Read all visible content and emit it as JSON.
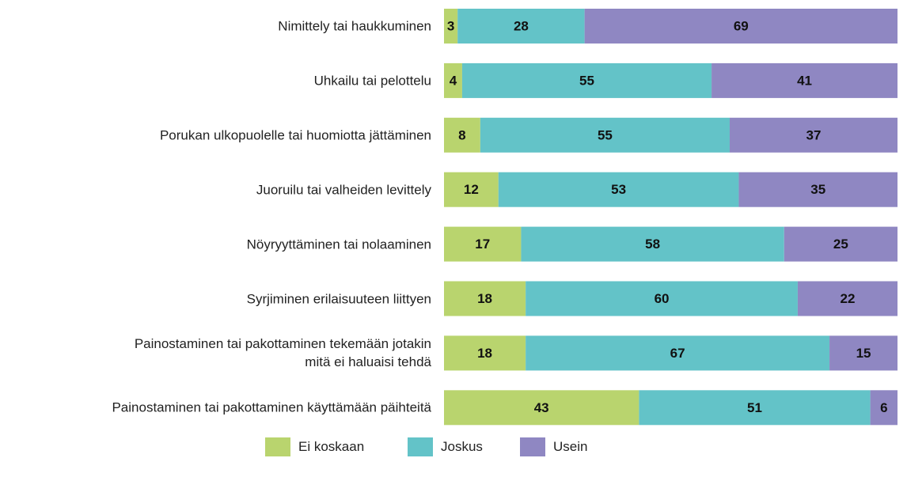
{
  "chart_data": {
    "type": "stacked-bar-horizontal",
    "categories": [
      "Nimittely tai haukkuminen",
      "Uhkailu tai pelottelu",
      "Porukan ulkopuolelle tai huomiotta jättäminen",
      "Juoruilu tai valheiden levittely",
      "Nöyryyttäminen tai nolaaminen",
      "Syrjiminen erilaisuuteen liittyen",
      "Painostaminen tai pakottaminen tekemään jotakin\nmitä ei haluaisi tehdä",
      "Painostaminen tai pakottaminen käyttämään päihteitä"
    ],
    "series": [
      {
        "name": "Ei koskaan",
        "color": "#b9d46e",
        "values": [
          3,
          4,
          8,
          12,
          17,
          18,
          18,
          43
        ]
      },
      {
        "name": "Joskus",
        "color": "#63c3c8",
        "values": [
          28,
          55,
          55,
          53,
          58,
          60,
          67,
          51
        ]
      },
      {
        "name": "Usein",
        "color": "#8f87c2",
        "values": [
          69,
          41,
          37,
          35,
          25,
          22,
          15,
          6
        ]
      }
    ]
  }
}
